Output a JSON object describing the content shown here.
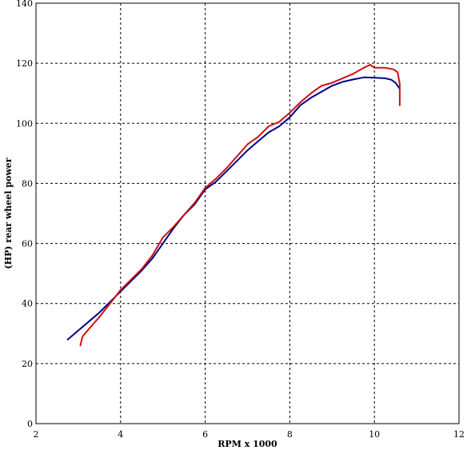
{
  "chart_data": {
    "type": "line",
    "xlabel": "RPM x 1000",
    "ylabel": "(HP) rear wheel power",
    "xlim": [
      2,
      12
    ],
    "ylim": [
      0,
      140
    ],
    "xticks": [
      2,
      4,
      6,
      8,
      10,
      12
    ],
    "yticks": [
      0,
      20,
      40,
      60,
      80,
      100,
      120,
      140
    ],
    "grid": true,
    "legend": "none",
    "series": [
      {
        "color": "#00008b",
        "x": [
          2.75,
          3.0,
          3.25,
          3.5,
          3.75,
          4.0,
          4.25,
          4.5,
          4.75,
          5.0,
          5.25,
          5.5,
          5.75,
          6.0,
          6.25,
          6.5,
          6.75,
          7.0,
          7.25,
          7.5,
          7.75,
          8.0,
          8.25,
          8.5,
          8.75,
          9.0,
          9.25,
          9.5,
          9.75,
          10.0,
          10.25,
          10.4,
          10.5,
          10.6
        ],
        "y": [
          28,
          31,
          34,
          37,
          40.5,
          44,
          47.5,
          51,
          55,
          60,
          65,
          69.5,
          73,
          78,
          80.5,
          84,
          87.5,
          91,
          94,
          97,
          99,
          102,
          106,
          108.5,
          110.5,
          112.5,
          113.8,
          114.6,
          115.3,
          115.2,
          115,
          114.5,
          113.5,
          111.5
        ]
      },
      {
        "color": "#cc1010",
        "x": [
          3.05,
          3.1,
          3.25,
          3.5,
          3.75,
          4.0,
          4.25,
          4.5,
          4.75,
          5.0,
          5.25,
          5.5,
          5.75,
          6.0,
          6.25,
          6.5,
          6.75,
          7.0,
          7.25,
          7.5,
          7.75,
          8.0,
          8.25,
          8.5,
          8.75,
          9.0,
          9.25,
          9.5,
          9.75,
          9.9,
          10.0,
          10.25,
          10.45,
          10.55,
          10.6,
          10.6
        ],
        "y": [
          26,
          29,
          31.5,
          35.5,
          40,
          44.5,
          48,
          51.5,
          56,
          62,
          65.5,
          69.5,
          73.5,
          78.5,
          81.5,
          85,
          89,
          93,
          95.5,
          99,
          100.5,
          103.5,
          107,
          110,
          112.5,
          113.5,
          115,
          116.5,
          118.5,
          119.5,
          118.5,
          118.5,
          118,
          117,
          113,
          106
        ]
      }
    ]
  }
}
